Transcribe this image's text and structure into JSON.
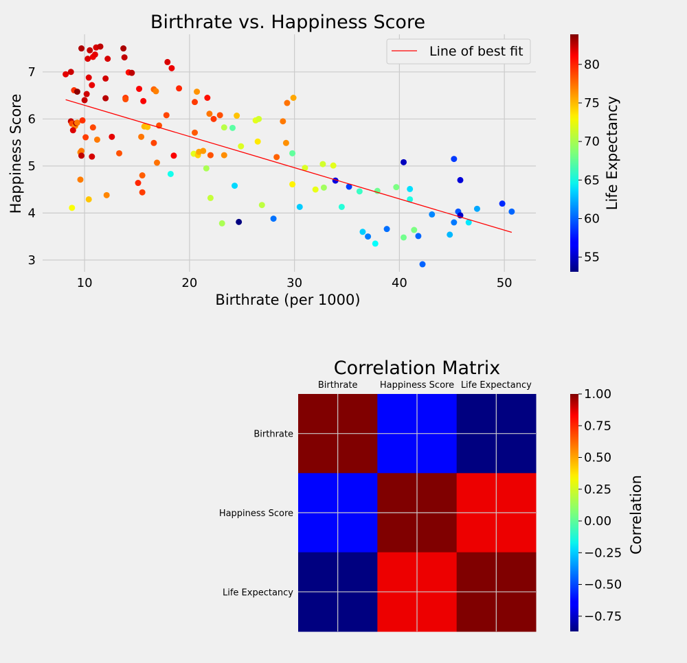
{
  "colors": {
    "background": "#f0f0f0",
    "grid": "#cbcbcb",
    "fit_line": "#ff0000",
    "colormap": "jet"
  },
  "chart_data": [
    {
      "type": "scatter",
      "title": "Birthrate vs. Happiness Score",
      "xlabel": "Birthrate (per 1000)",
      "ylabel": "Happiness Score",
      "xlim": [
        6,
        53
      ],
      "ylim": [
        2.75,
        7.8
      ],
      "xticks": [
        10,
        20,
        30,
        40,
        50
      ],
      "yticks": [
        3,
        4,
        5,
        6,
        7
      ],
      "grid": true,
      "legend": {
        "position": "top-right",
        "entries": [
          "Line of best fit"
        ]
      },
      "colorbar": {
        "label": "Life Expectancy",
        "range": [
          53.1,
          83.9
        ],
        "ticks": [
          55,
          60,
          65,
          70,
          75,
          80
        ]
      },
      "fit_line": {
        "label": "Line of best fit",
        "x": [
          8.2,
          50.7
        ],
        "y": [
          6.41,
          3.59
        ]
      },
      "points": [
        {
          "x": 9.7,
          "y": 7.5,
          "c": 82.5
        },
        {
          "x": 10.5,
          "y": 7.46,
          "c": 81.8
        },
        {
          "x": 11.1,
          "y": 7.52,
          "c": 81.3
        },
        {
          "x": 11.5,
          "y": 7.54,
          "c": 82.0
        },
        {
          "x": 13.7,
          "y": 7.5,
          "c": 82.6
        },
        {
          "x": 10.3,
          "y": 7.28,
          "c": 81.2
        },
        {
          "x": 10.8,
          "y": 7.32,
          "c": 80.5
        },
        {
          "x": 11.0,
          "y": 7.37,
          "c": 80.8
        },
        {
          "x": 12.2,
          "y": 7.28,
          "c": 81.3
        },
        {
          "x": 13.8,
          "y": 7.31,
          "c": 81.9
        },
        {
          "x": 17.9,
          "y": 7.21,
          "c": 81.2
        },
        {
          "x": 18.3,
          "y": 7.08,
          "c": 80.6
        },
        {
          "x": 8.2,
          "y": 6.95,
          "c": 80.9
        },
        {
          "x": 8.7,
          "y": 7.0,
          "c": 81.6
        },
        {
          "x": 10.4,
          "y": 6.88,
          "c": 81.0
        },
        {
          "x": 12.0,
          "y": 6.86,
          "c": 81.4
        },
        {
          "x": 14.2,
          "y": 6.99,
          "c": 79.7
        },
        {
          "x": 14.5,
          "y": 6.98,
          "c": 82.0
        },
        {
          "x": 10.7,
          "y": 6.72,
          "c": 80.7
        },
        {
          "x": 9.0,
          "y": 6.61,
          "c": 78.6
        },
        {
          "x": 9.3,
          "y": 6.58,
          "c": 83.5
        },
        {
          "x": 10.2,
          "y": 6.53,
          "c": 81.5
        },
        {
          "x": 12.0,
          "y": 6.44,
          "c": 82.2
        },
        {
          "x": 13.9,
          "y": 6.45,
          "c": 78.5
        },
        {
          "x": 13.9,
          "y": 6.42,
          "c": 77.8
        },
        {
          "x": 15.2,
          "y": 6.64,
          "c": 80.2
        },
        {
          "x": 16.6,
          "y": 6.63,
          "c": 77.0
        },
        {
          "x": 16.8,
          "y": 6.59,
          "c": 76.2
        },
        {
          "x": 19.0,
          "y": 6.65,
          "c": 78.9
        },
        {
          "x": 20.7,
          "y": 6.58,
          "c": 75.6
        },
        {
          "x": 21.7,
          "y": 6.45,
          "c": 79.6
        },
        {
          "x": 20.5,
          "y": 6.36,
          "c": 78.3
        },
        {
          "x": 15.6,
          "y": 6.38,
          "c": 80.2
        },
        {
          "x": 10.0,
          "y": 6.4,
          "c": 81.8
        },
        {
          "x": 29.9,
          "y": 6.45,
          "c": 75.0
        },
        {
          "x": 29.3,
          "y": 6.34,
          "c": 76.6
        },
        {
          "x": 21.9,
          "y": 6.11,
          "c": 76.5
        },
        {
          "x": 22.3,
          "y": 6.0,
          "c": 78.4
        },
        {
          "x": 22.9,
          "y": 6.08,
          "c": 77.7
        },
        {
          "x": 24.5,
          "y": 6.07,
          "c": 74.2
        },
        {
          "x": 26.3,
          "y": 5.97,
          "c": 71.6
        },
        {
          "x": 26.6,
          "y": 6.0,
          "c": 71.0
        },
        {
          "x": 28.9,
          "y": 5.95,
          "c": 76.4
        },
        {
          "x": 17.8,
          "y": 6.08,
          "c": 78.0
        },
        {
          "x": 8.7,
          "y": 5.95,
          "c": 81.9
        },
        {
          "x": 8.8,
          "y": 5.9,
          "c": 77.8
        },
        {
          "x": 9.1,
          "y": 5.85,
          "c": 76.0
        },
        {
          "x": 9.2,
          "y": 5.91,
          "c": 82.6
        },
        {
          "x": 9.3,
          "y": 5.92,
          "c": 76.5
        },
        {
          "x": 9.8,
          "y": 5.97,
          "c": 78.6
        },
        {
          "x": 10.8,
          "y": 5.82,
          "c": 77.9
        },
        {
          "x": 8.9,
          "y": 5.76,
          "c": 81.1
        },
        {
          "x": 15.7,
          "y": 5.84,
          "c": 74.5
        },
        {
          "x": 16.0,
          "y": 5.83,
          "c": 74.2
        },
        {
          "x": 17.1,
          "y": 5.86,
          "c": 77.7
        },
        {
          "x": 23.3,
          "y": 5.82,
          "c": 70.2
        },
        {
          "x": 24.1,
          "y": 5.81,
          "c": 67.4
        },
        {
          "x": 10.1,
          "y": 5.61,
          "c": 78.2
        },
        {
          "x": 11.2,
          "y": 5.56,
          "c": 76.4
        },
        {
          "x": 15.4,
          "y": 5.62,
          "c": 76.5
        },
        {
          "x": 12.6,
          "y": 5.62,
          "c": 80.8
        },
        {
          "x": 16.6,
          "y": 5.49,
          "c": 78.0
        },
        {
          "x": 20.5,
          "y": 5.71,
          "c": 77.4
        },
        {
          "x": 26.5,
          "y": 5.52,
          "c": 73.0
        },
        {
          "x": 29.2,
          "y": 5.49,
          "c": 75.7
        },
        {
          "x": 24.9,
          "y": 5.42,
          "c": 71.3
        },
        {
          "x": 9.6,
          "y": 5.29,
          "c": 75.8
        },
        {
          "x": 9.7,
          "y": 5.32,
          "c": 76.5
        },
        {
          "x": 9.7,
          "y": 5.22,
          "c": 82.0
        },
        {
          "x": 10.7,
          "y": 5.2,
          "c": 81.3
        },
        {
          "x": 13.3,
          "y": 5.27,
          "c": 77.6
        },
        {
          "x": 18.5,
          "y": 5.22,
          "c": 80.2
        },
        {
          "x": 20.4,
          "y": 5.26,
          "c": 71.5
        },
        {
          "x": 20.8,
          "y": 5.23,
          "c": 73.7
        },
        {
          "x": 20.9,
          "y": 5.3,
          "c": 75.0
        },
        {
          "x": 21.3,
          "y": 5.32,
          "c": 75.4
        },
        {
          "x": 22.0,
          "y": 5.23,
          "c": 77.6
        },
        {
          "x": 23.3,
          "y": 5.23,
          "c": 75.8
        },
        {
          "x": 29.8,
          "y": 5.27,
          "c": 67.6
        },
        {
          "x": 28.3,
          "y": 5.19,
          "c": 77.1
        },
        {
          "x": 16.9,
          "y": 5.07,
          "c": 76.6
        },
        {
          "x": 31.0,
          "y": 4.96,
          "c": 71.3
        },
        {
          "x": 32.7,
          "y": 5.04,
          "c": 71.0
        },
        {
          "x": 33.7,
          "y": 5.01,
          "c": 71.5
        },
        {
          "x": 40.4,
          "y": 5.08,
          "c": 55.0
        },
        {
          "x": 45.2,
          "y": 5.15,
          "c": 58.7
        },
        {
          "x": 21.6,
          "y": 4.95,
          "c": 69.8
        },
        {
          "x": 15.5,
          "y": 4.8,
          "c": 77.2
        },
        {
          "x": 18.2,
          "y": 4.83,
          "c": 65.2
        },
        {
          "x": 9.6,
          "y": 4.71,
          "c": 76.3
        },
        {
          "x": 15.1,
          "y": 4.64,
          "c": 78.9
        },
        {
          "x": 15.5,
          "y": 4.44,
          "c": 78.2
        },
        {
          "x": 33.9,
          "y": 4.69,
          "c": 56.0
        },
        {
          "x": 35.2,
          "y": 4.56,
          "c": 58.8
        },
        {
          "x": 24.3,
          "y": 4.58,
          "c": 63.5
        },
        {
          "x": 29.8,
          "y": 4.61,
          "c": 72.7
        },
        {
          "x": 32.0,
          "y": 4.5,
          "c": 71.7
        },
        {
          "x": 32.8,
          "y": 4.54,
          "c": 69.5
        },
        {
          "x": 36.2,
          "y": 4.46,
          "c": 66.4
        },
        {
          "x": 37.9,
          "y": 4.47,
          "c": 68.0
        },
        {
          "x": 39.7,
          "y": 4.55,
          "c": 68.4
        },
        {
          "x": 41.0,
          "y": 4.51,
          "c": 63.7
        },
        {
          "x": 45.8,
          "y": 4.7,
          "c": 55.8
        },
        {
          "x": 12.1,
          "y": 4.38,
          "c": 76.0
        },
        {
          "x": 10.4,
          "y": 4.29,
          "c": 74.1
        },
        {
          "x": 8.8,
          "y": 4.11,
          "c": 72.2
        },
        {
          "x": 22.0,
          "y": 4.32,
          "c": 70.6
        },
        {
          "x": 26.9,
          "y": 4.17,
          "c": 70.4
        },
        {
          "x": 30.5,
          "y": 4.13,
          "c": 63.1
        },
        {
          "x": 34.5,
          "y": 4.13,
          "c": 65.8
        },
        {
          "x": 41.0,
          "y": 4.29,
          "c": 65.5
        },
        {
          "x": 47.4,
          "y": 4.09,
          "c": 62.0
        },
        {
          "x": 49.8,
          "y": 4.2,
          "c": 58.2
        },
        {
          "x": 50.7,
          "y": 4.03,
          "c": 60.0
        },
        {
          "x": 45.6,
          "y": 4.03,
          "c": 59.5
        },
        {
          "x": 45.8,
          "y": 3.95,
          "c": 55.3
        },
        {
          "x": 43.1,
          "y": 3.97,
          "c": 61.0
        },
        {
          "x": 24.7,
          "y": 3.81,
          "c": 53.1
        },
        {
          "x": 23.1,
          "y": 3.78,
          "c": 69.8
        },
        {
          "x": 28.0,
          "y": 3.88,
          "c": 60.4
        },
        {
          "x": 45.2,
          "y": 3.8,
          "c": 60.6
        },
        {
          "x": 46.6,
          "y": 3.8,
          "c": 64.0
        },
        {
          "x": 36.5,
          "y": 3.6,
          "c": 63.2
        },
        {
          "x": 38.8,
          "y": 3.66,
          "c": 60.3
        },
        {
          "x": 41.4,
          "y": 3.64,
          "c": 68.4
        },
        {
          "x": 37.0,
          "y": 3.5,
          "c": 60.7
        },
        {
          "x": 41.8,
          "y": 3.51,
          "c": 60.0
        },
        {
          "x": 44.8,
          "y": 3.54,
          "c": 62.5
        },
        {
          "x": 40.4,
          "y": 3.48,
          "c": 68.1
        },
        {
          "x": 37.7,
          "y": 3.35,
          "c": 64.7
        },
        {
          "x": 42.2,
          "y": 2.91,
          "c": 59.9
        }
      ]
    },
    {
      "type": "heatmap",
      "title": "Correlation Matrix",
      "labels": [
        "Birthrate",
        "Happiness Score",
        "Life Expectancy"
      ],
      "values": [
        [
          1.0,
          -0.63,
          -0.87
        ],
        [
          -0.63,
          1.0,
          0.8
        ],
        [
          -0.87,
          0.8,
          1.0
        ]
      ],
      "colorbar": {
        "label": "Correlation",
        "range": [
          -0.87,
          1.0
        ],
        "ticks": [
          "1.00",
          "0.75",
          "0.50",
          "0.25",
          "0.00",
          "-0.25",
          "-0.50",
          "-0.75"
        ]
      }
    }
  ]
}
